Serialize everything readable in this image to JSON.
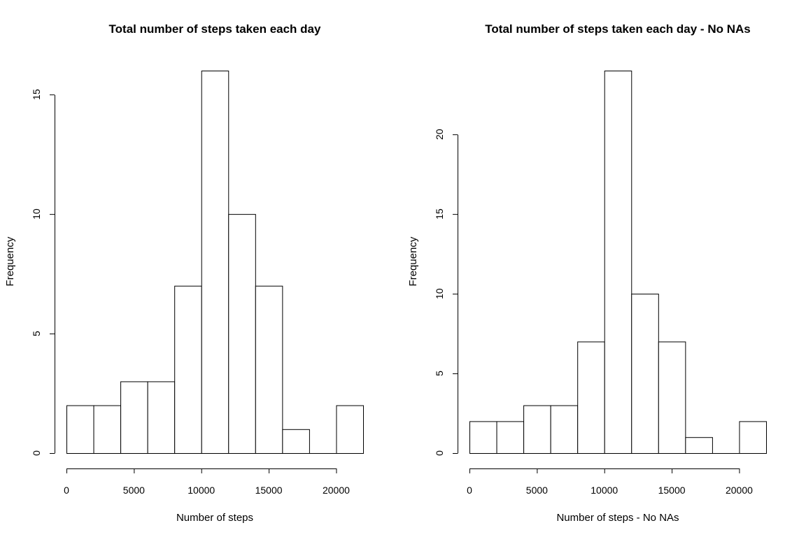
{
  "chart_data": [
    {
      "type": "bar",
      "title": "Total number of steps taken each day",
      "xlabel": "Number of steps",
      "ylabel": "Frequency",
      "bin_edges": [
        0,
        2000,
        4000,
        6000,
        8000,
        10000,
        12000,
        14000,
        16000,
        18000,
        20000,
        22000
      ],
      "values": [
        2,
        2,
        3,
        3,
        7,
        16,
        10,
        7,
        1,
        0,
        2
      ],
      "xticks": [
        0,
        5000,
        10000,
        15000,
        20000
      ],
      "yticks": [
        0,
        5,
        10,
        15
      ],
      "xlim": [
        0,
        22000
      ],
      "ylim": [
        0,
        16
      ],
      "grid": false,
      "bar_fill": "#ffffff",
      "bar_stroke": "#000000"
    },
    {
      "type": "bar",
      "title": "Total number of steps taken each day - No NAs",
      "xlabel": "Number of steps - No NAs",
      "ylabel": "Frequency",
      "bin_edges": [
        0,
        2000,
        4000,
        6000,
        8000,
        10000,
        12000,
        14000,
        16000,
        18000,
        20000,
        22000
      ],
      "values": [
        2,
        2,
        3,
        3,
        7,
        24,
        10,
        7,
        1,
        0,
        2
      ],
      "xticks": [
        0,
        5000,
        10000,
        15000,
        20000
      ],
      "yticks": [
        0,
        5,
        10,
        15,
        20
      ],
      "xlim": [
        0,
        22000
      ],
      "ylim": [
        0,
        24
      ],
      "grid": false,
      "bar_fill": "#ffffff",
      "bar_stroke": "#000000"
    }
  ]
}
